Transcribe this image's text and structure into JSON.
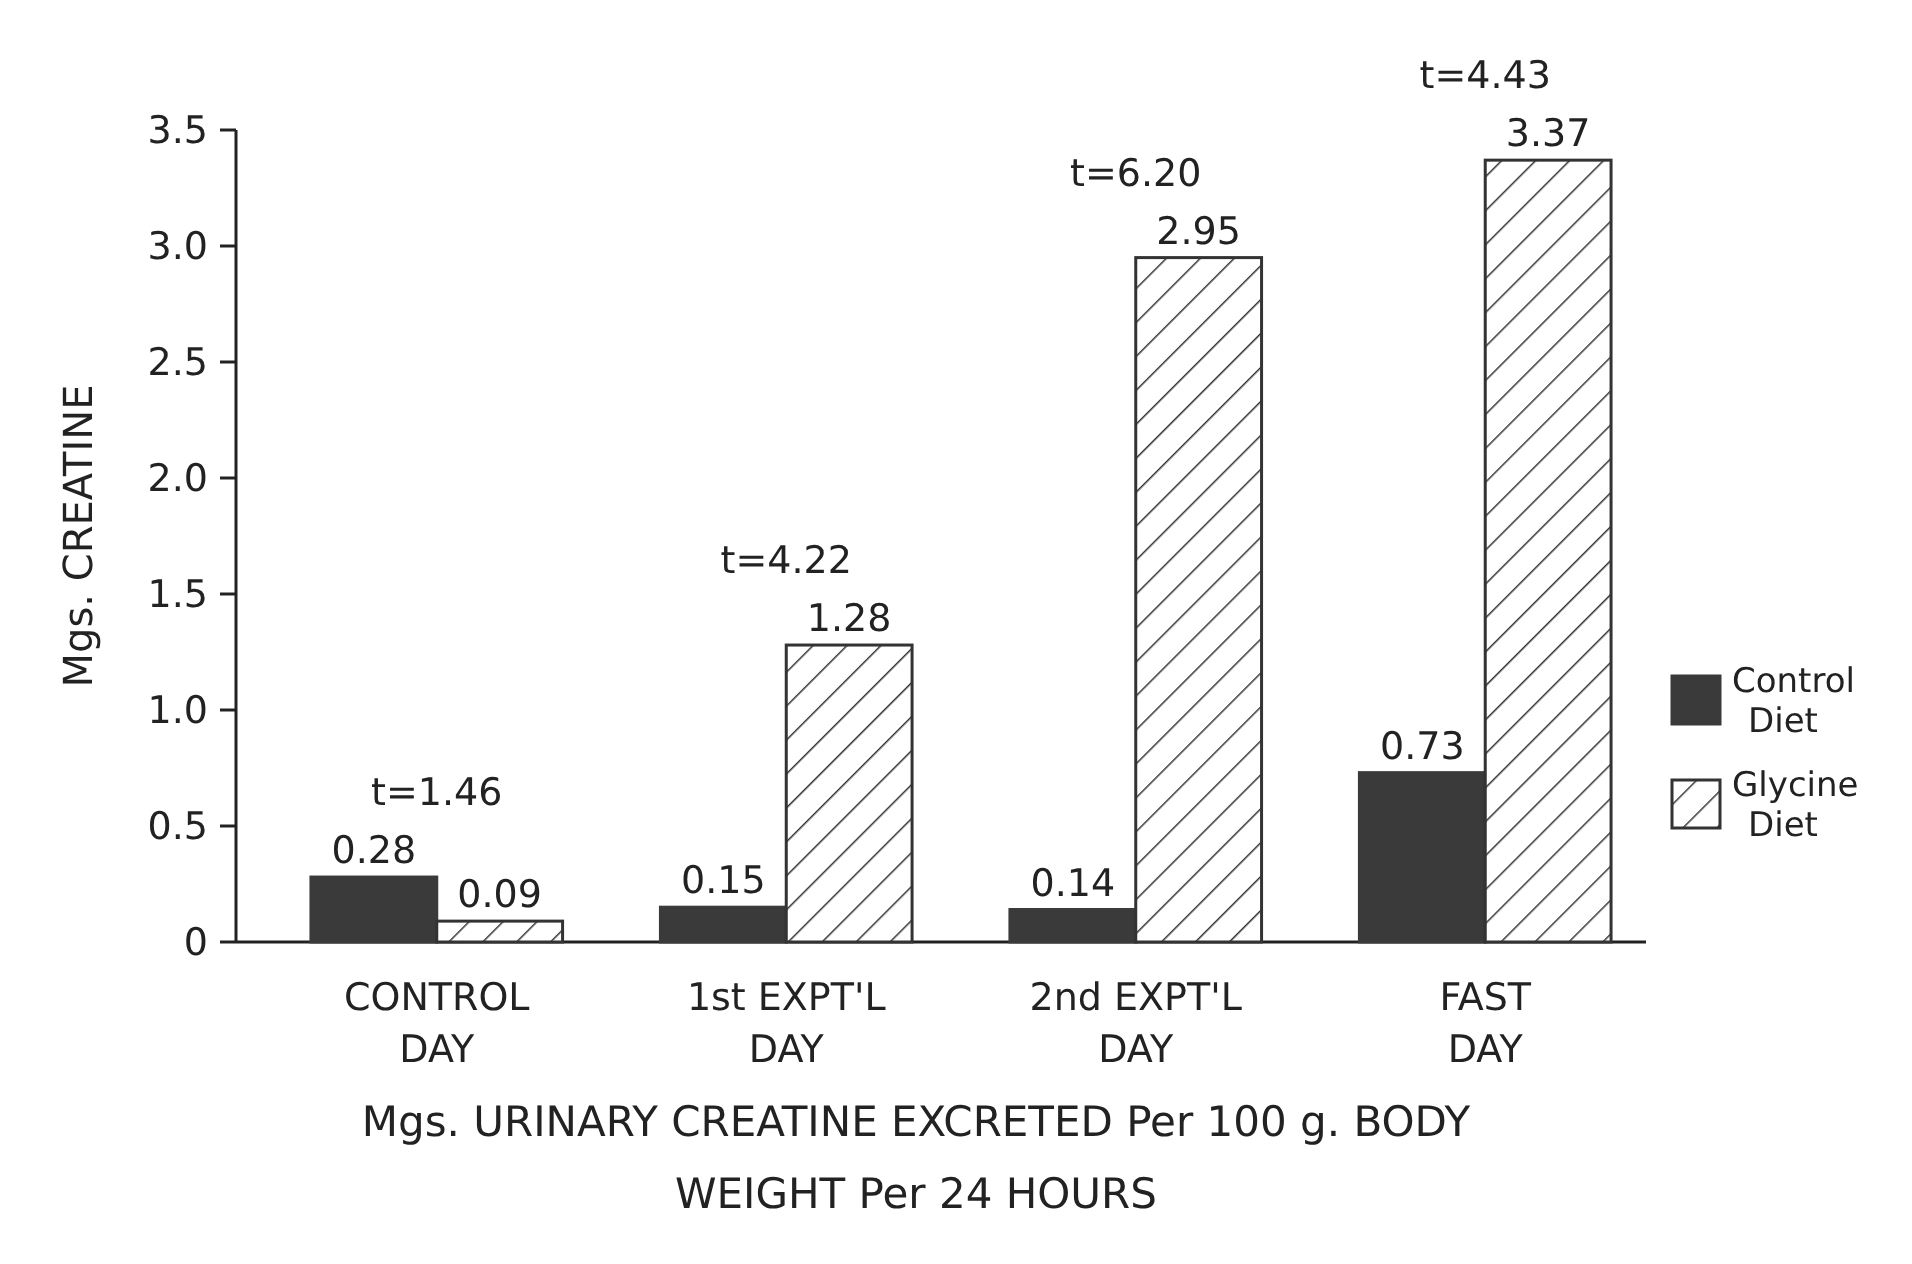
{
  "chart_data": {
    "type": "bar",
    "title": "Mgs. URINARY CREATINE EXCRETED Per 100 g. BODY WEIGHT Per 24 HOURS",
    "ylabel": "Mgs. CREATINE",
    "categories": [
      "CONTROL DAY",
      "1st EXPT'L DAY",
      "2nd EXPT'L DAY",
      "FAST DAY"
    ],
    "series": [
      {
        "name": "Control Diet",
        "color": "#3a3a3a",
        "values": [
          0.28,
          0.15,
          0.14,
          0.73
        ]
      },
      {
        "name": "Glycine Diet",
        "color": "#333333",
        "values": [
          0.09,
          1.28,
          2.95,
          3.37
        ]
      }
    ],
    "annotations": [
      "t=1.46",
      "t=4.22",
      "t=6.20",
      "t=4.43"
    ],
    "ylim": [
      0,
      3.5
    ],
    "yticks": [
      0,
      0.5,
      {
        "value": 1,
        "label": "1.0"
      },
      1.5,
      {
        "value": 2,
        "label": "2.0"
      },
      2.5,
      {
        "value": 3,
        "label": "3.0"
      },
      3.5
    ],
    "data_labels": true,
    "legend": "right",
    "grid": false
  }
}
